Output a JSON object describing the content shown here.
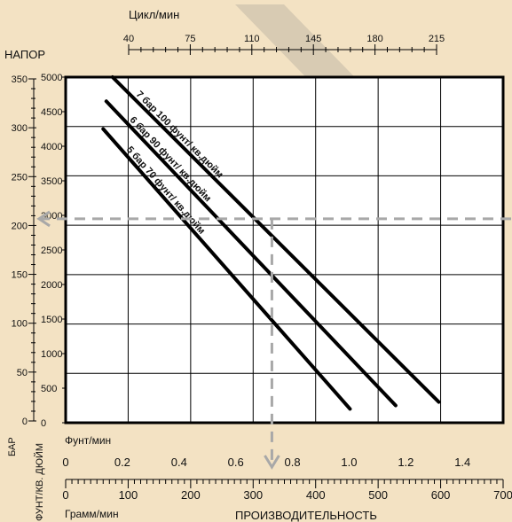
{
  "chart_data": {
    "type": "line",
    "title": "",
    "top_axis": {
      "label": "Цикл/мин",
      "ticks": [
        "40",
        "75",
        "110",
        "145",
        "180",
        "215"
      ]
    },
    "left_axis_outer": {
      "title": "НАПОР",
      "label": "БАР",
      "ticks": [
        "0",
        "50",
        "100",
        "150",
        "200",
        "250",
        "300",
        "350"
      ]
    },
    "left_axis_inner": {
      "label": "ФУНТ/КВ. ДЮЙМ",
      "ticks": [
        "0",
        "500",
        "1000",
        "1500",
        "2000",
        "2500",
        "3000",
        "3500",
        "4000",
        "4500",
        "5000"
      ]
    },
    "bottom_axis_upper": {
      "label": "Фунт/мин",
      "ticks": [
        "0",
        "0.2",
        "0.4",
        "0.6",
        "0.8",
        "1.0",
        "1.2",
        "1.4"
      ]
    },
    "bottom_axis_lower": {
      "label": "Грамм/мин",
      "ticks": [
        "0",
        "100",
        "200",
        "300",
        "400",
        "500",
        "600",
        "700"
      ]
    },
    "xlabel": "ПРОИЗВОДИТЕЛЬНОСТЬ",
    "xunit": "Грамм/мин",
    "yunit": "ФУНТ/КВ. ДЮЙМ",
    "xlim": [
      0,
      700
    ],
    "ylim": [
      0,
      5000
    ],
    "series": [
      {
        "name": "7 бар 100 фунт/ кв.дюйм",
        "x": [
          75,
          597
        ],
        "y": [
          5000,
          300
        ]
      },
      {
        "name": "6 бар 90 фунт/ кв.дюйм",
        "x": [
          65,
          528
        ],
        "y": [
          4650,
          250
        ]
      },
      {
        "name": "5 бар 70 фунт/ кв.дюйм",
        "x": [
          60,
          455
        ],
        "y": [
          4250,
          200
        ]
      }
    ],
    "reference": {
      "x": 330,
      "y": 2950,
      "line_style": "dashed"
    },
    "grid": true,
    "colors": {
      "background": "#f3e2c3",
      "plot": "#ffffff",
      "line": "#000000",
      "guide": "#a8a8a8",
      "watermark": "#7a7a7a"
    }
  }
}
